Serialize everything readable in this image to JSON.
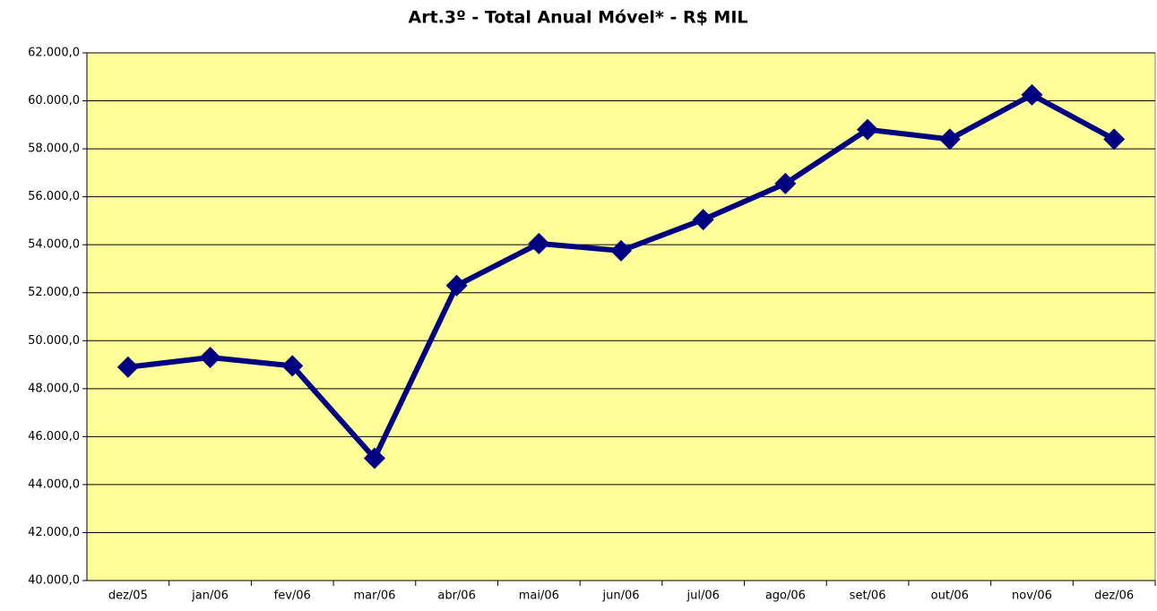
{
  "chart_data": {
    "type": "line",
    "title": "Art.3º - Total Anual Móvel* - R$ MIL",
    "categories": [
      "dez/05",
      "jan/06",
      "fev/06",
      "mar/06",
      "abr/06",
      "mai/06",
      "jun/06",
      "jul/06",
      "ago/06",
      "set/06",
      "out/06",
      "nov/06",
      "dez/06"
    ],
    "series": [
      {
        "name": "Total Anual Móvel",
        "color": "#000080",
        "values": [
          48900,
          49300,
          48950,
          45100,
          52300,
          54050,
          53750,
          55050,
          56550,
          58800,
          58400,
          60250,
          58400
        ]
      }
    ],
    "ylim": [
      40000,
      62000
    ],
    "yticks": [
      {
        "value": 40000,
        "label": "40.000,0"
      },
      {
        "value": 42000,
        "label": "42.000,0"
      },
      {
        "value": 44000,
        "label": "44.000,0"
      },
      {
        "value": 46000,
        "label": "46.000,0"
      },
      {
        "value": 48000,
        "label": "48.000,0"
      },
      {
        "value": 50000,
        "label": "50.000,0"
      },
      {
        "value": 52000,
        "label": "52.000,0"
      },
      {
        "value": 54000,
        "label": "54.000,0"
      },
      {
        "value": 56000,
        "label": "56.000,0"
      },
      {
        "value": 58000,
        "label": "58.000,0"
      },
      {
        "value": 60000,
        "label": "60.000,0"
      },
      {
        "value": 62000,
        "label": "62.000,0"
      }
    ],
    "grid": true,
    "plot_background": "#ffff99"
  }
}
